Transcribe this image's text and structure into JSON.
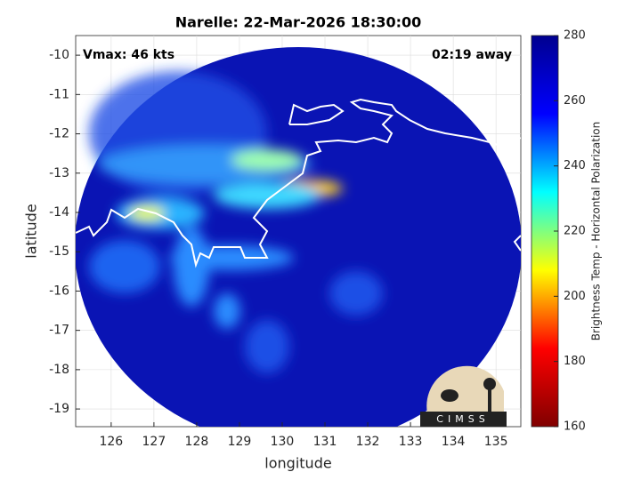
{
  "chart_data": {
    "type": "image",
    "title": "Narelle: 22-Mar-2026 18:30:00",
    "annotations": [
      "Vmax: 46 kts",
      "02:19 away"
    ],
    "x_label": "longitude",
    "y_label": "latitude",
    "xlim": [
      125.17,
      135.58
    ],
    "xticks": [
      126,
      127,
      128,
      129,
      130,
      131,
      132,
      133,
      134,
      135
    ],
    "ylim": [
      -19.45,
      -9.5
    ],
    "yticks": [
      -10,
      -11,
      -12,
      -13,
      -14,
      -15,
      -16,
      -17,
      -18,
      -19
    ],
    "grid": true,
    "colorbar": {
      "label": "Brightness Temp - Horizontal Polarization",
      "lim": [
        160,
        280
      ],
      "ticks": [
        160,
        180,
        200,
        220,
        240,
        260,
        280
      ],
      "colormap": "jet_r"
    },
    "logo": "CIMSS"
  }
}
